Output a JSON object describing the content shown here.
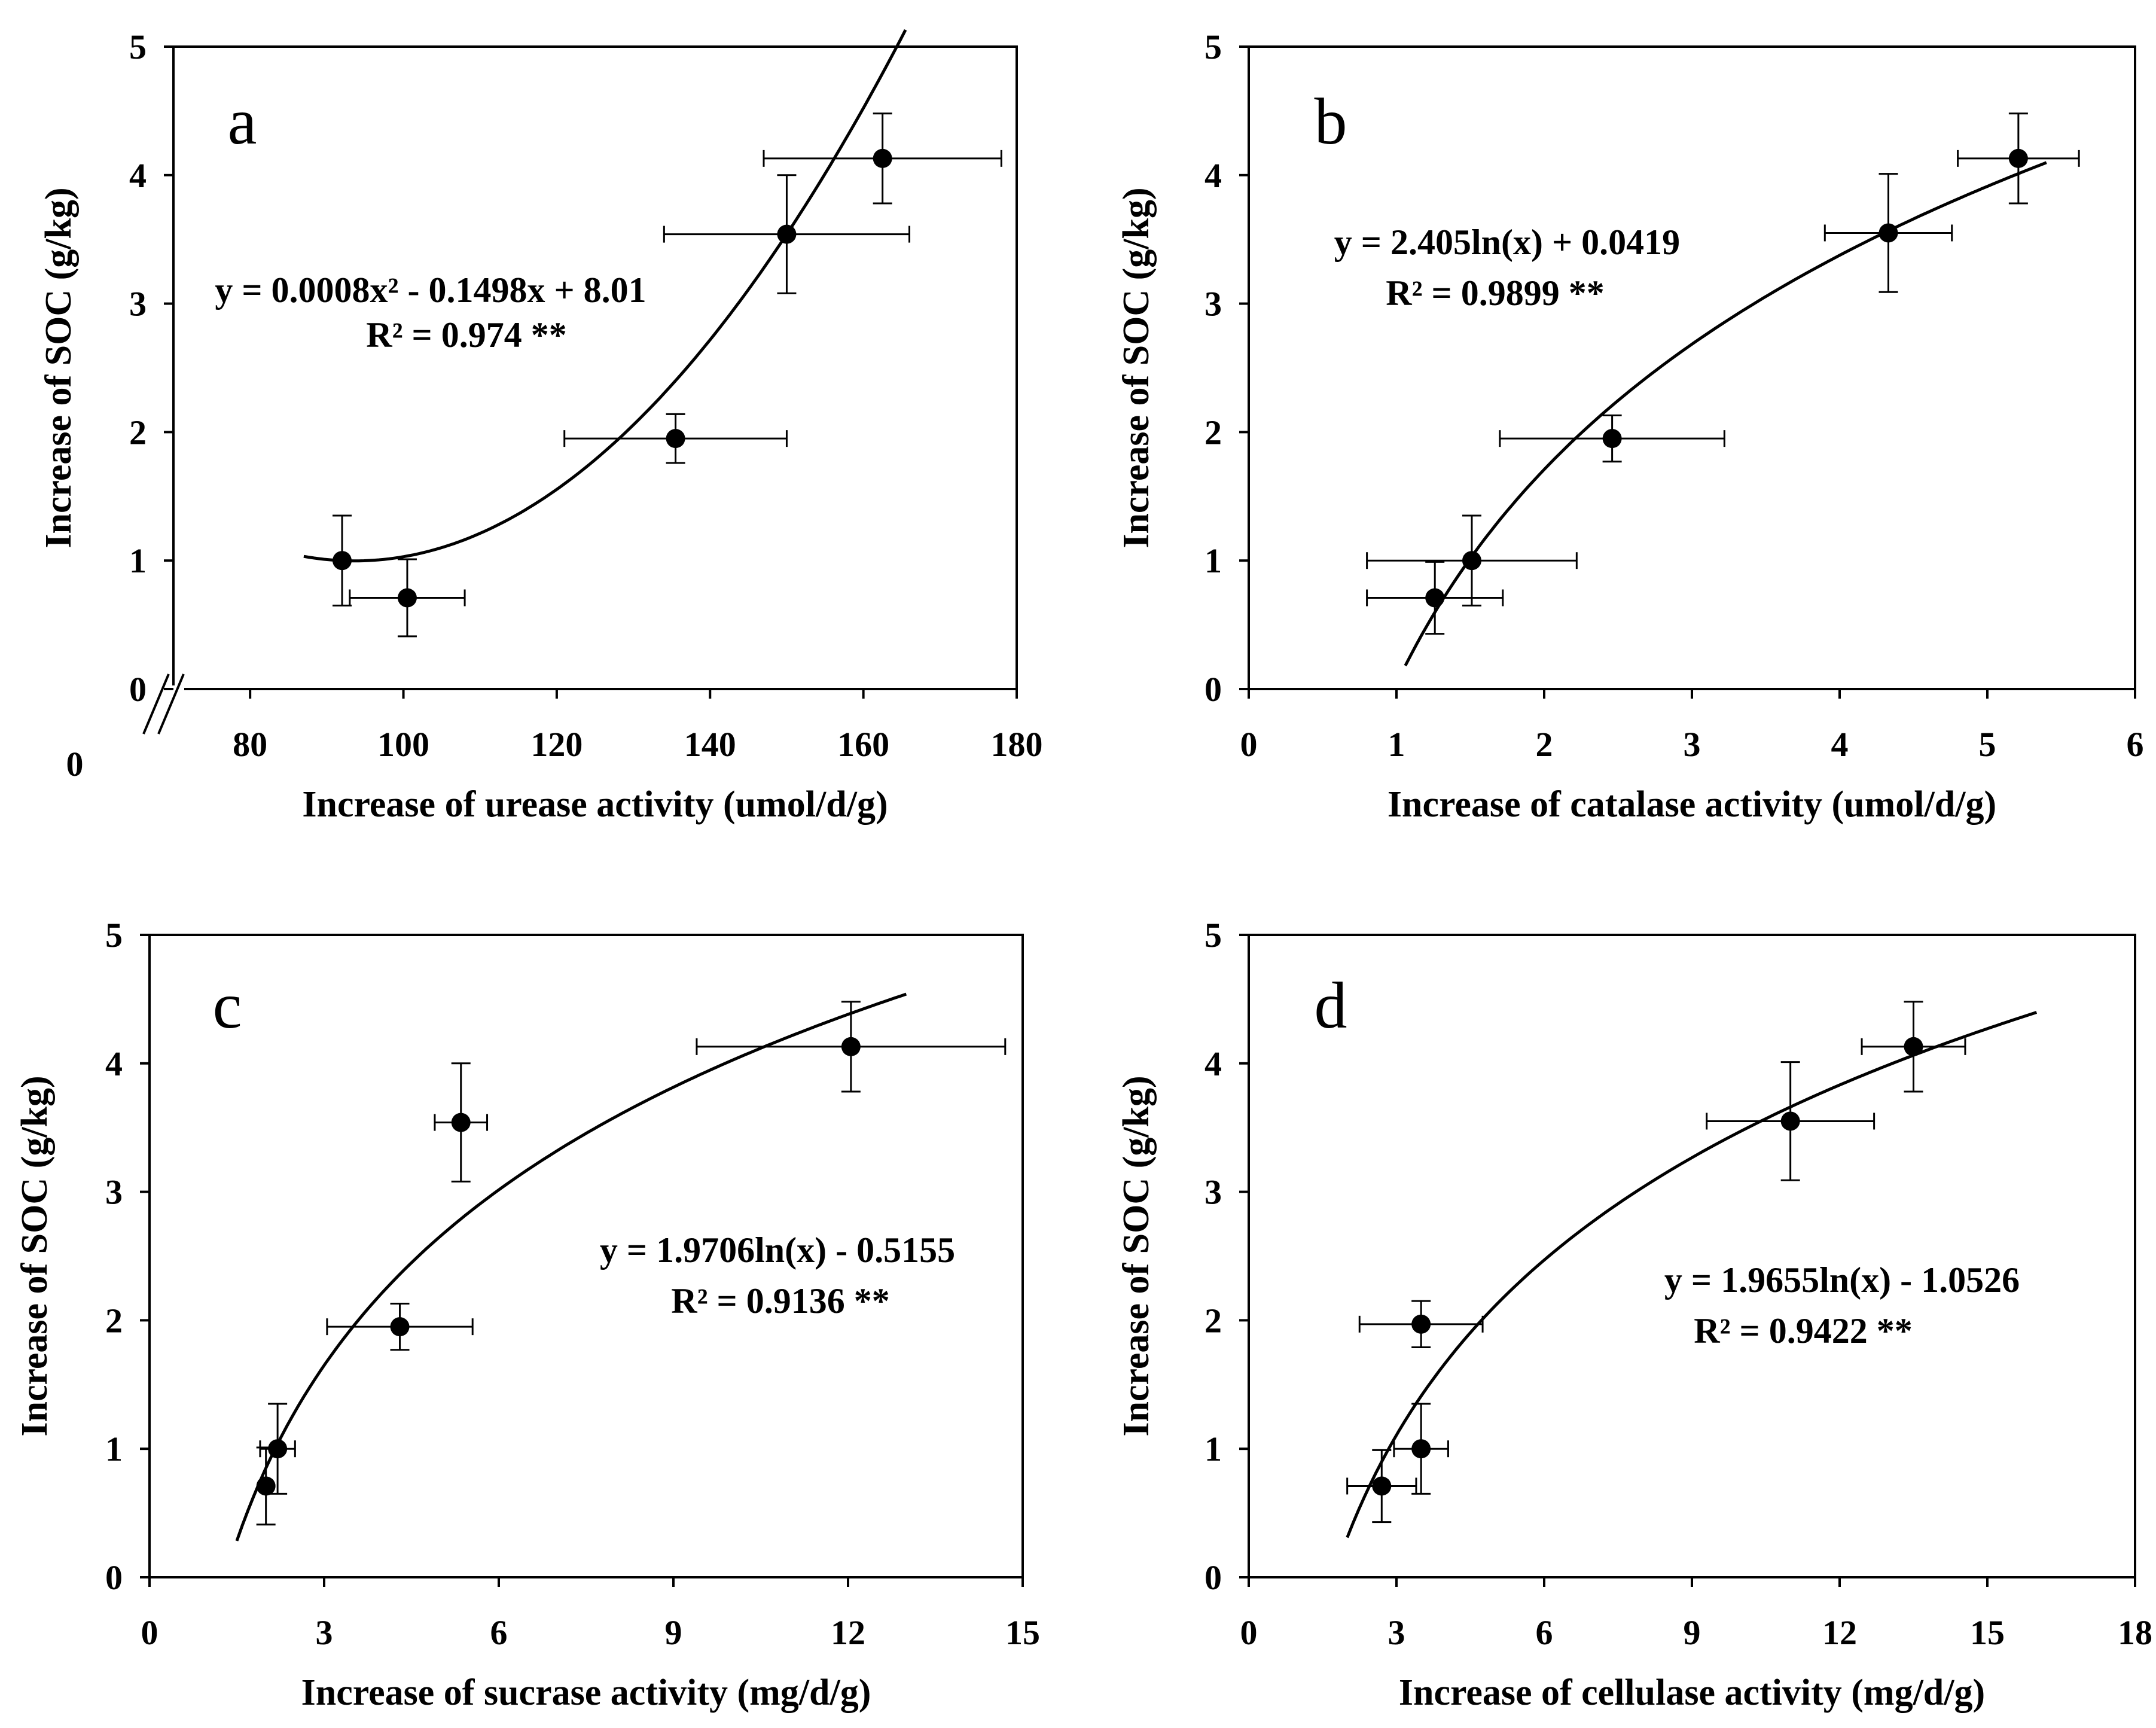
{
  "chart_data": [
    {
      "type": "scatter",
      "panel_label": "a",
      "xlabel": "Increase of urease activity (umol/d/g)",
      "ylabel": "Increase of SOC (g/kg)",
      "xlim": [
        70,
        180
      ],
      "ylim": [
        0,
        5
      ],
      "x_ticks": [
        80,
        100,
        120,
        140,
        160,
        180
      ],
      "y_ticks": [
        0,
        1,
        2,
        3,
        4,
        5
      ],
      "x_origin_label": "0",
      "axis_break": true,
      "grid": false,
      "points": [
        {
          "x": 92,
          "y": 1.0,
          "xerr": null,
          "yerr": 0.35
        },
        {
          "x": 100.5,
          "y": 0.71,
          "xerr": 7.5,
          "yerr": 0.3
        },
        {
          "x": 135.5,
          "y": 1.95,
          "xerr": 14.5,
          "yerr": 0.19
        },
        {
          "x": 150,
          "y": 3.54,
          "xerr": 16,
          "yerr": 0.46
        },
        {
          "x": 162.5,
          "y": 4.13,
          "xerr": 15.5,
          "yerr": 0.35
        }
      ],
      "fit": {
        "type": "polynomial",
        "coefficients": [
          0.0008,
          -0.1498,
          8.01
        ],
        "x_range": [
          87,
          165.5
        ]
      },
      "equation": "y = 0.0008x² - 0.1498x + 8.01",
      "r_squared": "R² = 0.974  **"
    },
    {
      "type": "scatter",
      "panel_label": "b",
      "xlabel": "Increase of catalase activity (umol/d/g)",
      "ylabel": "Increase of SOC (g/kg)",
      "xlim": [
        0,
        6
      ],
      "ylim": [
        0,
        5
      ],
      "x_ticks": [
        0,
        1,
        2,
        3,
        4,
        5,
        6
      ],
      "y_ticks": [
        0,
        1,
        2,
        3,
        4,
        5
      ],
      "grid": false,
      "points": [
        {
          "x": 1.26,
          "y": 0.71,
          "xerr": 0.46,
          "yerr": 0.28
        },
        {
          "x": 1.51,
          "y": 1.0,
          "xerr": 0.71,
          "yerr": 0.35
        },
        {
          "x": 2.46,
          "y": 1.95,
          "xerr": 0.76,
          "yerr": 0.18
        },
        {
          "x": 4.33,
          "y": 3.55,
          "xerr": 0.43,
          "yerr": 0.46
        },
        {
          "x": 5.21,
          "y": 4.13,
          "xerr": 0.41,
          "yerr": 0.35
        }
      ],
      "fit": {
        "type": "log",
        "a": 2.405,
        "b": 0.0419,
        "x_range": [
          1.06,
          5.4
        ]
      },
      "equation": "y = 2.405ln(x) + 0.0419",
      "r_squared": "R² = 0.9899 **"
    },
    {
      "type": "scatter",
      "panel_label": "c",
      "xlabel": "Increase of sucrase activity (mg/d/g)",
      "ylabel": "Increase of SOC (g/kg)",
      "xlim": [
        0,
        15
      ],
      "ylim": [
        0,
        5
      ],
      "x_ticks": [
        0,
        3,
        6,
        9,
        12,
        15
      ],
      "y_ticks": [
        0,
        1,
        2,
        3,
        4,
        5
      ],
      "grid": false,
      "points": [
        {
          "x": 2.0,
          "y": 0.71,
          "xerr": null,
          "yerr": 0.3
        },
        {
          "x": 2.2,
          "y": 1.0,
          "xerr": 0.3,
          "yerr": 0.35
        },
        {
          "x": 4.3,
          "y": 1.95,
          "xerr": 1.25,
          "yerr": 0.18
        },
        {
          "x": 5.35,
          "y": 3.54,
          "xerr": 0.45,
          "yerr": 0.46
        },
        {
          "x": 12.05,
          "y": 4.13,
          "xerr": 2.65,
          "yerr": 0.35
        }
      ],
      "fit": {
        "type": "log",
        "a": 1.9706,
        "b": -0.5155,
        "x_range": [
          1.5,
          13.0
        ]
      },
      "equation": "y = 1.9706ln(x) - 0.5155",
      "r_squared": "R² = 0.9136  **"
    },
    {
      "type": "scatter",
      "panel_label": "d",
      "xlabel": "Increase of cellulase activity (mg/d/g)",
      "ylabel": "Increase of SOC (g/kg)",
      "xlim": [
        0,
        18
      ],
      "ylim": [
        0,
        5
      ],
      "x_ticks": [
        0,
        3,
        6,
        9,
        12,
        15,
        18
      ],
      "y_ticks": [
        0,
        1,
        2,
        3,
        4,
        5
      ],
      "grid": false,
      "points": [
        {
          "x": 2.7,
          "y": 0.71,
          "xerr": 0.7,
          "yerr": 0.28
        },
        {
          "x": 3.5,
          "y": 1.0,
          "xerr": 0.55,
          "yerr": 0.35
        },
        {
          "x": 3.5,
          "y": 1.97,
          "xerr": 1.25,
          "yerr": 0.18
        },
        {
          "x": 11.0,
          "y": 3.55,
          "xerr": 1.7,
          "yerr": 0.46
        },
        {
          "x": 13.5,
          "y": 4.13,
          "xerr": 1.05,
          "yerr": 0.35
        }
      ],
      "fit": {
        "type": "log",
        "a": 1.9655,
        "b": -1.0526,
        "x_range": [
          2.0,
          16.0
        ]
      },
      "equation": "y = 1.9655ln(x) - 1.0526",
      "r_squared": "R² = 0.9422  **"
    }
  ]
}
